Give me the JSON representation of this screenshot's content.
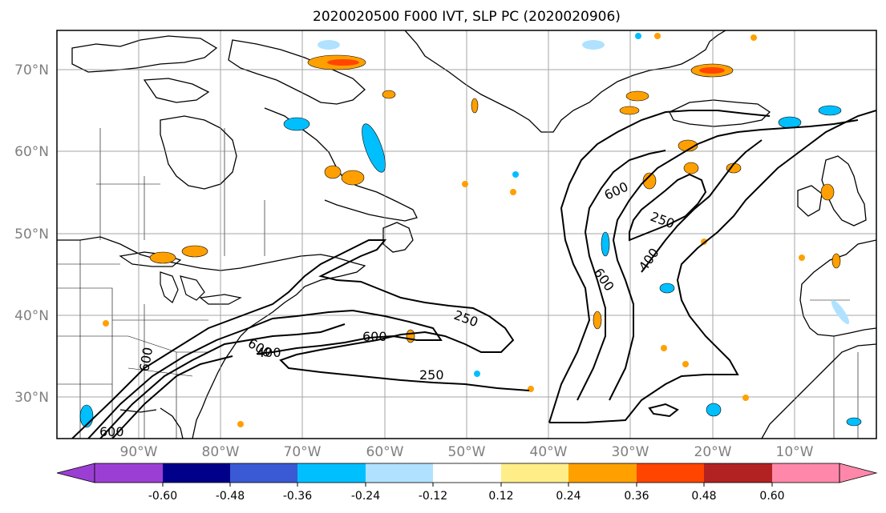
{
  "title": "2020020500 F000 IVT, SLP PC (2020020906)",
  "map": {
    "lat_labels": [
      "70°N",
      "60°N",
      "50°N",
      "40°N",
      "30°N"
    ],
    "lon_labels": [
      "90°W",
      "80°W",
      "70°W",
      "60°W",
      "50°W",
      "40°W",
      "30°W",
      "20°W",
      "10°W"
    ],
    "contour_labels": [
      "250",
      "600",
      "600",
      "400",
      "250",
      "600",
      "250",
      "400",
      "600",
      "600",
      "600"
    ],
    "gridlines": true,
    "gridline_color": "#808080",
    "coastline_color": "#000000"
  },
  "colorbar": {
    "ticks": [
      "-0.60",
      "-0.48",
      "-0.36",
      "-0.24",
      "-0.12",
      "0.12",
      "0.24",
      "0.36",
      "0.48",
      "0.60"
    ],
    "colors": [
      "#9b3fd4",
      "#00008b",
      "#3a59d4",
      "#00bfff",
      "#b0e2ff",
      "#ffffff",
      "#ffee88",
      "#ffa000",
      "#ff4500",
      "#b22222",
      "#ff88aa"
    ],
    "extend": "both"
  }
}
